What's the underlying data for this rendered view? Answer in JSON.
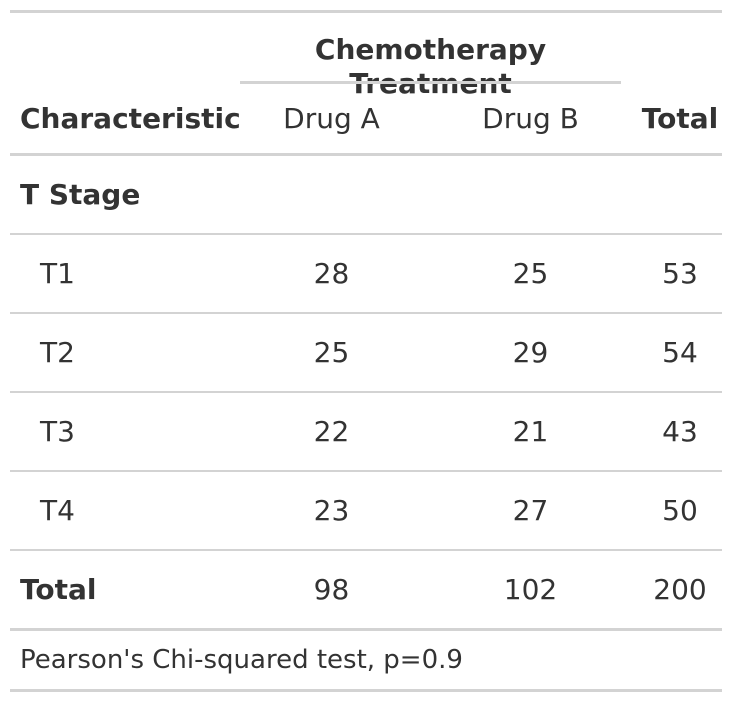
{
  "table": {
    "spanner_label": "Chemotherapy Treatment",
    "columns": {
      "characteristic": "Characteristic",
      "drug_a": "Drug A",
      "drug_b": "Drug B",
      "total": "Total"
    },
    "group": {
      "label": "T Stage"
    },
    "rows": [
      {
        "label": "T1",
        "drug_a": "28",
        "drug_b": "25",
        "total": "53"
      },
      {
        "label": "T2",
        "drug_a": "25",
        "drug_b": "29",
        "total": "54"
      },
      {
        "label": "T3",
        "drug_a": "22",
        "drug_b": "21",
        "total": "43"
      },
      {
        "label": "T4",
        "drug_a": "23",
        "drug_b": "27",
        "total": "50"
      }
    ],
    "total_row": {
      "label": "Total",
      "drug_a": "98",
      "drug_b": "102",
      "total": "200"
    },
    "footnote": "Pearson's Chi-squared test, p=0.9"
  }
}
